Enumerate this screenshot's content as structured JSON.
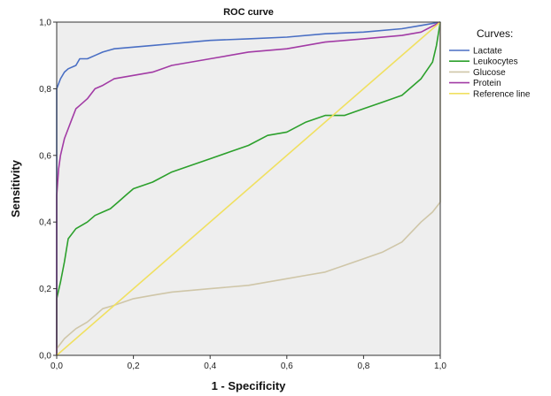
{
  "chart_data": {
    "type": "line",
    "title": "ROC curve",
    "xlabel": "1 - Specificity",
    "ylabel": "Sensitivity",
    "xlim": [
      0,
      1
    ],
    "ylim": [
      0,
      1
    ],
    "x_ticks": [
      "0,0",
      "0,2",
      "0,4",
      "0,6",
      "0,8",
      "1,0"
    ],
    "y_ticks": [
      "0,0",
      "0,2",
      "0,4",
      "0,6",
      "0,8",
      "1,0"
    ],
    "grid": false,
    "plot_background": "#eeeeee",
    "legend_title": "Curves:",
    "legend_position": "right",
    "series": [
      {
        "name": "Lactate",
        "color": "#4a6fc4",
        "x": [
          0,
          0,
          0.01,
          0.02,
          0.03,
          0.05,
          0.06,
          0.08,
          0.1,
          0.12,
          0.15,
          0.2,
          0.25,
          0.3,
          0.35,
          0.4,
          0.5,
          0.6,
          0.7,
          0.8,
          0.9,
          0.95,
          1.0
        ],
        "y": [
          0,
          0.8,
          0.83,
          0.85,
          0.86,
          0.87,
          0.89,
          0.89,
          0.9,
          0.91,
          0.92,
          0.925,
          0.93,
          0.935,
          0.94,
          0.945,
          0.95,
          0.955,
          0.965,
          0.97,
          0.98,
          0.99,
          1.0
        ]
      },
      {
        "name": "Leukocytes",
        "color": "#2ca02c",
        "x": [
          0,
          0,
          0.01,
          0.02,
          0.03,
          0.05,
          0.08,
          0.1,
          0.12,
          0.14,
          0.16,
          0.18,
          0.2,
          0.25,
          0.3,
          0.35,
          0.4,
          0.45,
          0.5,
          0.55,
          0.6,
          0.65,
          0.7,
          0.75,
          0.8,
          0.85,
          0.9,
          0.95,
          0.98,
          0.99,
          1.0
        ],
        "y": [
          0,
          0.17,
          0.22,
          0.28,
          0.35,
          0.38,
          0.4,
          0.42,
          0.43,
          0.44,
          0.46,
          0.48,
          0.5,
          0.52,
          0.55,
          0.57,
          0.59,
          0.61,
          0.63,
          0.66,
          0.67,
          0.7,
          0.72,
          0.72,
          0.74,
          0.76,
          0.78,
          0.83,
          0.88,
          0.93,
          1.0
        ]
      },
      {
        "name": "Glucose",
        "color": "#cfc6a8",
        "x": [
          0,
          0,
          0.02,
          0.05,
          0.08,
          0.1,
          0.12,
          0.15,
          0.2,
          0.25,
          0.3,
          0.4,
          0.5,
          0.55,
          0.6,
          0.65,
          0.7,
          0.75,
          0.8,
          0.85,
          0.9,
          0.95,
          0.98,
          1.0,
          1.0
        ],
        "y": [
          0,
          0.02,
          0.05,
          0.08,
          0.1,
          0.12,
          0.14,
          0.15,
          0.17,
          0.18,
          0.19,
          0.2,
          0.21,
          0.22,
          0.23,
          0.24,
          0.25,
          0.27,
          0.29,
          0.31,
          0.34,
          0.4,
          0.43,
          0.46,
          1.0
        ]
      },
      {
        "name": "Protein",
        "color": "#a23ba5",
        "x": [
          0,
          0,
          0.005,
          0.01,
          0.02,
          0.03,
          0.04,
          0.05,
          0.06,
          0.08,
          0.1,
          0.12,
          0.15,
          0.2,
          0.25,
          0.3,
          0.4,
          0.5,
          0.6,
          0.7,
          0.8,
          0.9,
          0.95,
          1.0
        ],
        "y": [
          0,
          0.48,
          0.56,
          0.6,
          0.65,
          0.68,
          0.71,
          0.74,
          0.75,
          0.77,
          0.8,
          0.81,
          0.83,
          0.84,
          0.85,
          0.87,
          0.89,
          0.91,
          0.92,
          0.94,
          0.95,
          0.96,
          0.97,
          1.0
        ]
      },
      {
        "name": "Reference line",
        "color": "#f0e060",
        "x": [
          0,
          1
        ],
        "y": [
          0,
          1
        ]
      }
    ]
  }
}
